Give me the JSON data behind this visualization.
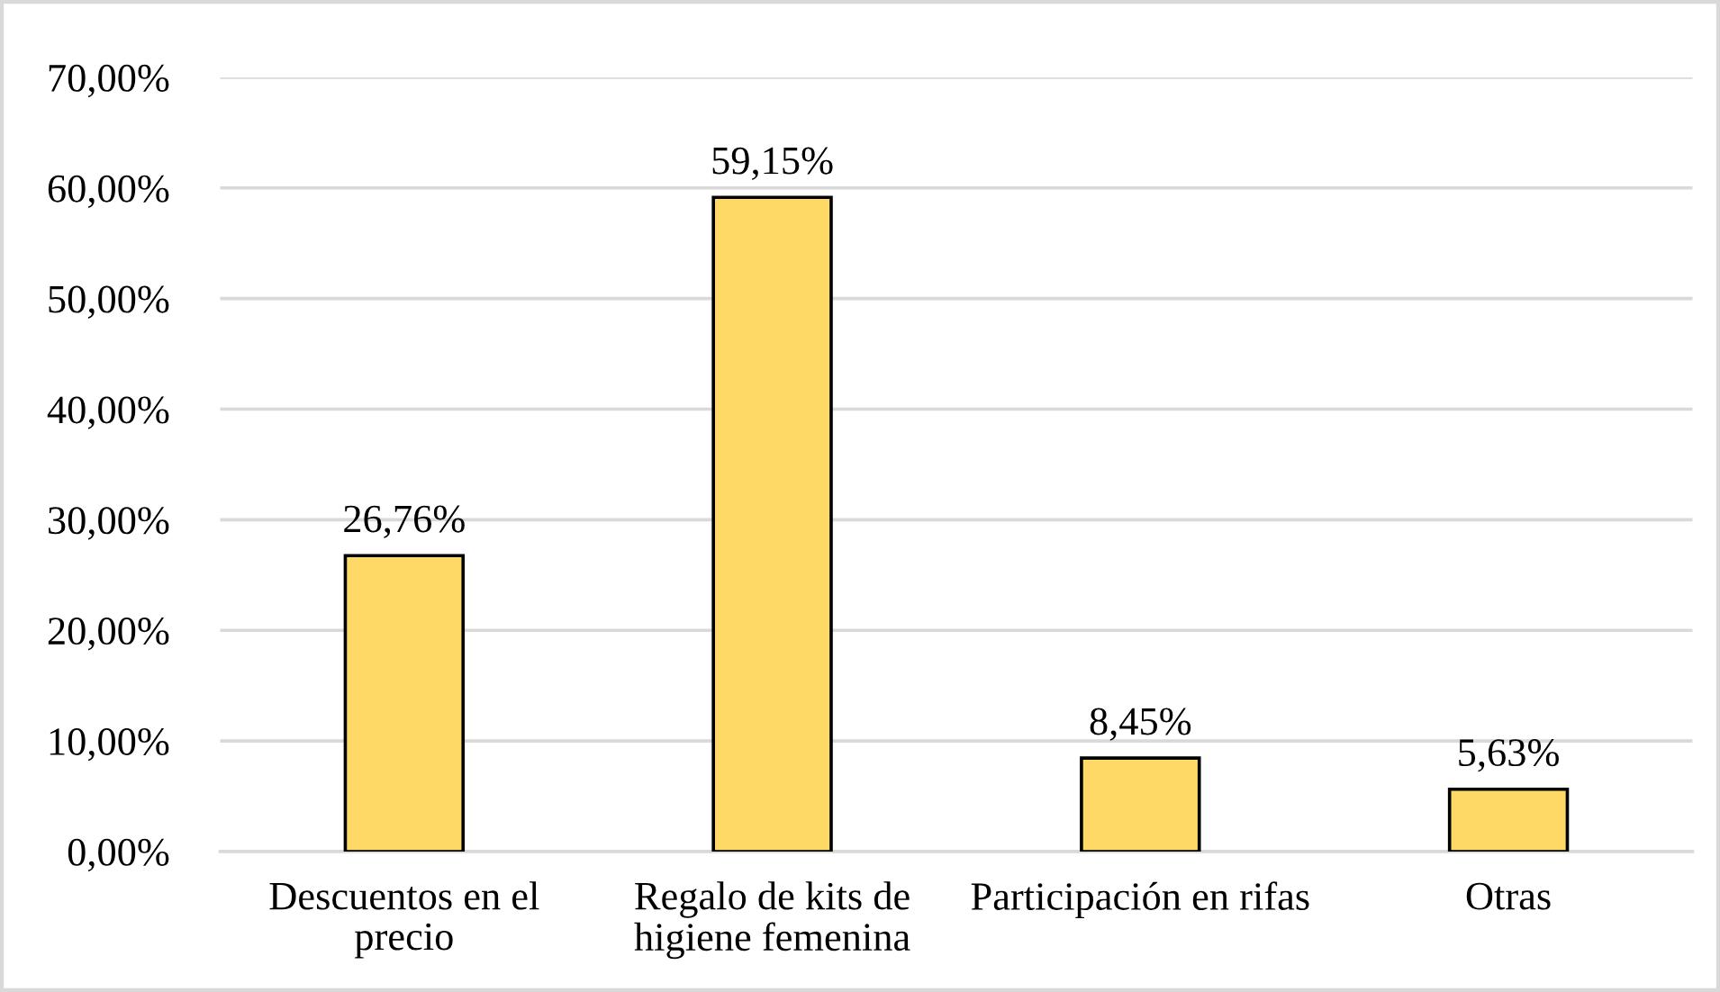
{
  "chart_data": {
    "type": "bar",
    "categories": [
      "Descuentos en el\nprecio",
      "Regalo de kits de\nhigiene femenina",
      "Participación en rifas",
      "Otras"
    ],
    "values": [
      26.76,
      59.15,
      8.45,
      5.63
    ],
    "value_labels": [
      "26,76%",
      "59,15%",
      "8,45%",
      "5,63%"
    ],
    "color": "#ffd966",
    "ylim": [
      0,
      70
    ],
    "yticks": [
      {
        "value": 0,
        "label": "0,00%"
      },
      {
        "value": 10,
        "label": "10,00%"
      },
      {
        "value": 20,
        "label": "20,00%"
      },
      {
        "value": 30,
        "label": "30,00%"
      },
      {
        "value": 40,
        "label": "40,00%"
      },
      {
        "value": 50,
        "label": "50,00%"
      },
      {
        "value": 60,
        "label": "60,00%"
      },
      {
        "value": 70,
        "label": "70,00%"
      }
    ],
    "grid": "y",
    "legend": false
  }
}
